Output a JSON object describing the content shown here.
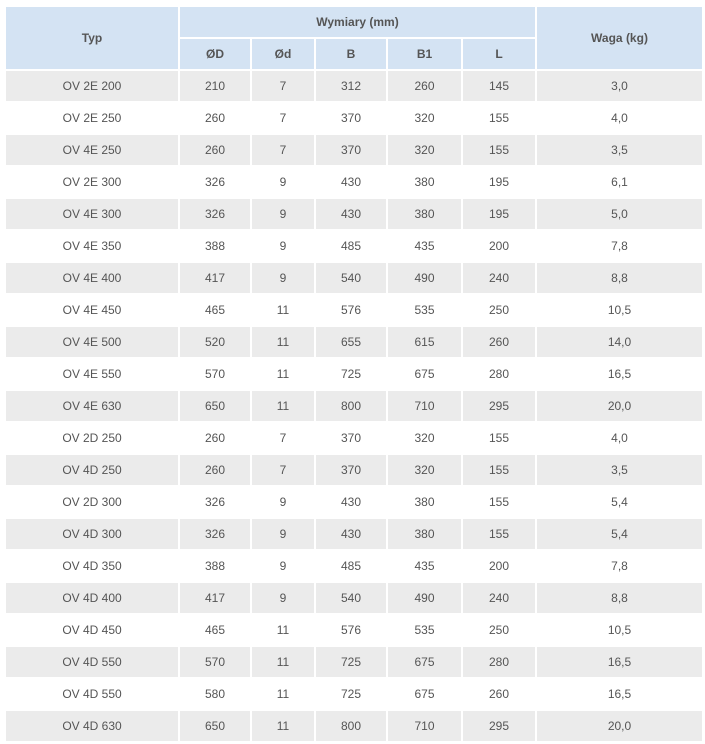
{
  "header": {
    "typ": "Typ",
    "wymiary": "Wymiary (mm)",
    "waga": "Waga (kg)",
    "sub": [
      "ØD",
      "Ød",
      "B",
      "B1",
      "L"
    ]
  },
  "colors": {
    "header_bg": "#d4e3f3",
    "stripe_bg": "#ebebeb"
  },
  "rows": [
    [
      "OV 2E 200",
      "210",
      "7",
      "312",
      "260",
      "145",
      "3,0"
    ],
    [
      "OV 2E 250",
      "260",
      "7",
      "370",
      "320",
      "155",
      "4,0"
    ],
    [
      "OV 4E 250",
      "260",
      "7",
      "370",
      "320",
      "155",
      "3,5"
    ],
    [
      "OV 2E 300",
      "326",
      "9",
      "430",
      "380",
      "195",
      "6,1"
    ],
    [
      "OV 4E 300",
      "326",
      "9",
      "430",
      "380",
      "195",
      "5,0"
    ],
    [
      "OV 4E 350",
      "388",
      "9",
      "485",
      "435",
      "200",
      "7,8"
    ],
    [
      "OV 4E 400",
      "417",
      "9",
      "540",
      "490",
      "240",
      "8,8"
    ],
    [
      "OV 4E 450",
      "465",
      "11",
      "576",
      "535",
      "250",
      "10,5"
    ],
    [
      "OV 4E 500",
      "520",
      "11",
      "655",
      "615",
      "260",
      "14,0"
    ],
    [
      "OV 4E 550",
      "570",
      "11",
      "725",
      "675",
      "280",
      "16,5"
    ],
    [
      "OV 4E 630",
      "650",
      "11",
      "800",
      "710",
      "295",
      "20,0"
    ],
    [
      "OV 2D 250",
      "260",
      "7",
      "370",
      "320",
      "155",
      "4,0"
    ],
    [
      "OV 4D 250",
      "260",
      "7",
      "370",
      "320",
      "155",
      "3,5"
    ],
    [
      "OV 2D 300",
      "326",
      "9",
      "430",
      "380",
      "155",
      "5,4"
    ],
    [
      "OV 4D 300",
      "326",
      "9",
      "430",
      "380",
      "155",
      "5,4"
    ],
    [
      "OV 4D 350",
      "388",
      "9",
      "485",
      "435",
      "200",
      "7,8"
    ],
    [
      "OV 4D 400",
      "417",
      "9",
      "540",
      "490",
      "240",
      "8,8"
    ],
    [
      "OV 4D 450",
      "465",
      "11",
      "576",
      "535",
      "250",
      "10,5"
    ],
    [
      "OV 4D 550",
      "570",
      "11",
      "725",
      "675",
      "280",
      "16,5"
    ],
    [
      "OV 4D 550",
      "580",
      "11",
      "725",
      "675",
      "260",
      "16,5"
    ],
    [
      "OV 4D 630",
      "650",
      "11",
      "800",
      "710",
      "295",
      "20,0"
    ]
  ]
}
